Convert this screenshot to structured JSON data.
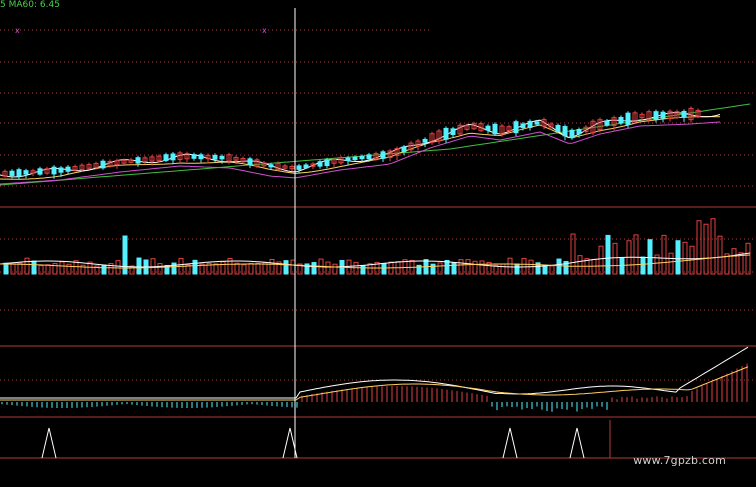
{
  "legend": {
    "lead": "5",
    "ma60_label": "MA60: 6.45"
  },
  "watermark": "www.7gpzb.com",
  "colors": {
    "background": "#000000",
    "grid_dotted": "#b03a3a",
    "panel_border": "#b03a3a",
    "cursor": "#ffffff",
    "up_candle": "#e04040",
    "down_candle": "#54f0ff",
    "ma5": "#ffffff",
    "ma10": "#ffd060",
    "ma20": "#d050d0",
    "ma60": "#40c040",
    "macd_dif": "#ffffff",
    "macd_dea": "#ffd060",
    "signal": "#ffffff"
  },
  "chart_data": [
    {
      "type": "candlestick",
      "title": "",
      "series": [
        {
          "name": "MA60",
          "values": [
            5.62,
            5.64,
            5.66,
            5.69,
            5.71,
            5.74,
            5.77,
            5.79,
            5.81,
            5.84,
            5.87,
            5.91,
            5.95,
            6.0,
            6.07,
            6.16,
            6.28,
            6.37,
            6.45
          ]
        }
      ],
      "close": [
        5.8,
        5.82,
        5.85,
        5.9,
        5.95,
        6.05,
        6.02,
        5.88,
        5.98,
        6.05,
        6.1,
        6.25,
        6.55,
        6.62,
        6.45,
        6.72,
        6.6,
        6.75,
        6.85
      ],
      "markers": [
        "x",
        "x"
      ]
    },
    {
      "type": "bar",
      "title": "",
      "volume": [
        0.35,
        0.3,
        0.32,
        0.4,
        0.33,
        0.38,
        0.45,
        0.35,
        0.32,
        0.3,
        0.34,
        0.33,
        0.3,
        0.32,
        0.35,
        0.48,
        0.52,
        0.45,
        0.75
      ]
    },
    {
      "type": "bar",
      "title": "",
      "macd": [
        -0.02,
        -0.01,
        0.0,
        0.01,
        0.01,
        -0.01,
        -0.03,
        -0.04,
        0.01,
        0.02,
        0.04,
        0.07,
        0.1,
        0.05,
        -0.06,
        -0.03,
        -0.01,
        0.02,
        0.15
      ]
    },
    {
      "type": "line",
      "title": "",
      "signal_peaks": 4
    }
  ]
}
